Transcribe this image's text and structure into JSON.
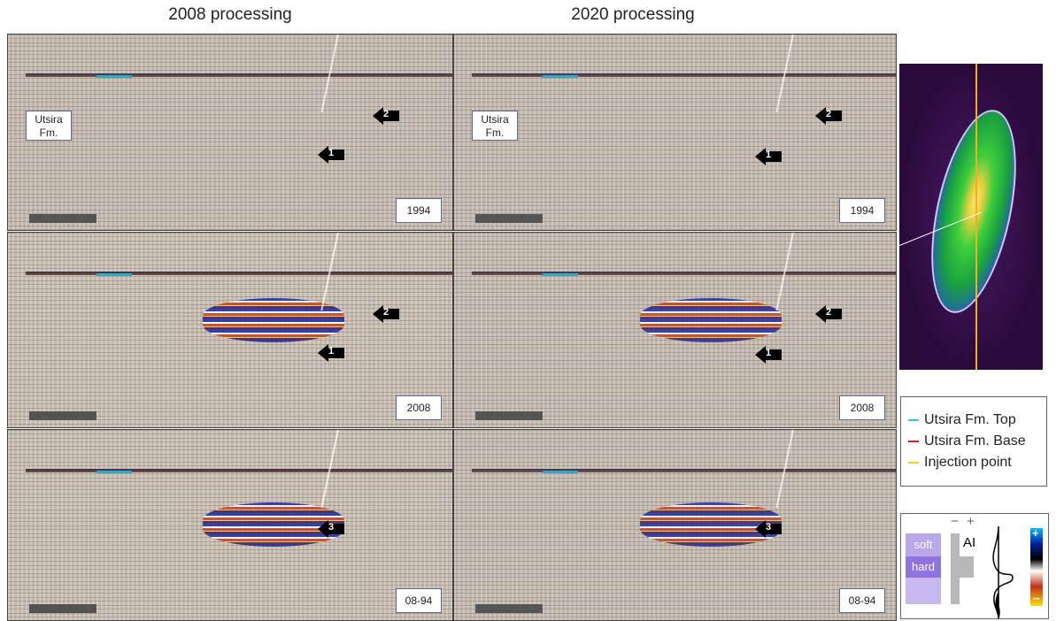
{
  "columns": [
    "2008 processing",
    "2020 processing"
  ],
  "panels": [
    {
      "formation": [
        "Utsira",
        "Fm."
      ],
      "arrows": [
        "2",
        "1"
      ],
      "year": "1994"
    },
    {
      "formation": [
        "Utsira",
        "Fm."
      ],
      "arrows": [
        "2",
        "1"
      ],
      "year": "1994"
    },
    {
      "arrows": [
        "2",
        "1"
      ],
      "year": "2008"
    },
    {
      "arrows": [
        "2",
        "1"
      ],
      "year": "2008"
    },
    {
      "arrows": [
        "3"
      ],
      "year": "08-94"
    },
    {
      "arrows": [
        "3"
      ],
      "year": "08-94"
    }
  ],
  "legend": [
    {
      "name": "Utsira Fm. Top",
      "color": "#33c7e0"
    },
    {
      "name": "Utsira Fm. Base",
      "color": "#e02020"
    },
    {
      "name": "Injection point",
      "color": "#f0d020"
    }
  ],
  "ai_key": {
    "soft": "soft",
    "hard": "hard",
    "label": "AI",
    "minus": "−",
    "plus": "+",
    "bar_plus": "+",
    "bar_minus": "−"
  }
}
